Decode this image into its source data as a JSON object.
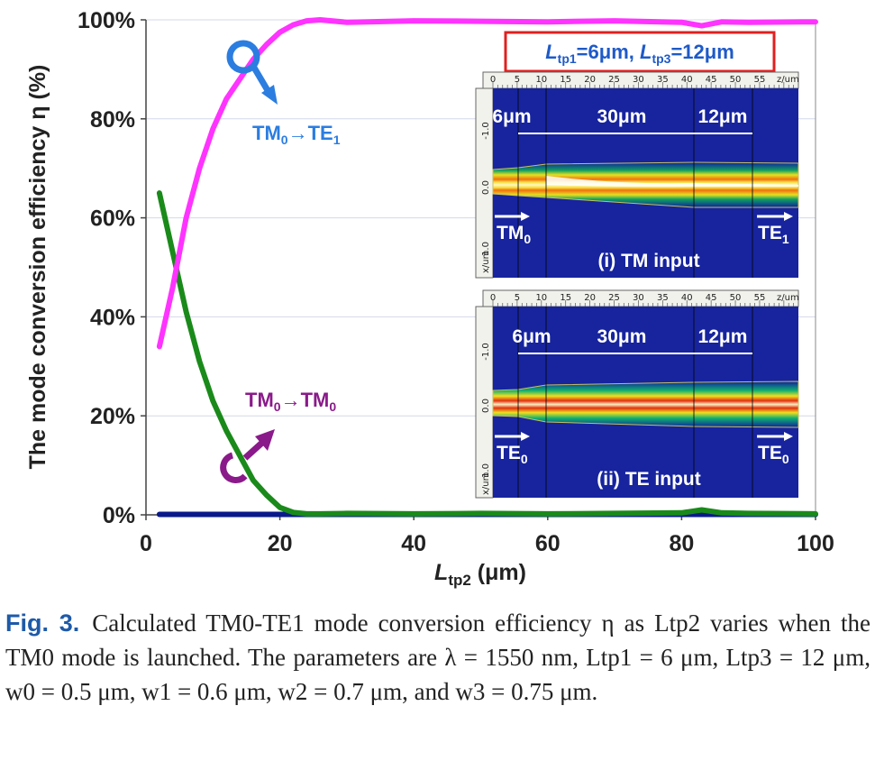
{
  "chart_data": {
    "type": "line",
    "ylabel": "The mode conversion efficiency η (%)",
    "xlabel": {
      "main": "L",
      "sub": "tp2",
      "unit": " (μm)"
    },
    "xlim": [
      0,
      100
    ],
    "ylim": [
      0,
      100
    ],
    "x_ticks": [
      "0",
      "20",
      "40",
      "60",
      "80",
      "100"
    ],
    "y_ticks": [
      "0%",
      "20%",
      "40%",
      "60%",
      "80%",
      "100%"
    ],
    "grid": "horizontal",
    "series": [
      {
        "name": "TM0→TE1",
        "color": "#ff33ff",
        "x": [
          2,
          4,
          6,
          8,
          10,
          12,
          14,
          16,
          18,
          20,
          22,
          24,
          26,
          30,
          40,
          50,
          60,
          70,
          80,
          83,
          86,
          90,
          100
        ],
        "y": [
          34,
          46,
          60,
          70,
          78,
          84,
          88,
          92,
          95,
          97.5,
          99,
          99.8,
          100,
          99.5,
          99.8,
          99.7,
          99.6,
          99.8,
          99.5,
          98.8,
          99.6,
          99.5,
          99.6
        ]
      },
      {
        "name": "TM0→TM0",
        "color": "#1a8a1a",
        "x": [
          2,
          4,
          6,
          8,
          10,
          12,
          14,
          16,
          18,
          20,
          22,
          24,
          26,
          30,
          40,
          50,
          60,
          70,
          80,
          83,
          86,
          90,
          100
        ],
        "y": [
          65,
          53,
          41,
          31,
          23,
          17,
          12,
          7,
          4,
          1.5,
          0.5,
          0.2,
          0.2,
          0.3,
          0.2,
          0.3,
          0.2,
          0.3,
          0.4,
          1.0,
          0.4,
          0.3,
          0.2
        ]
      },
      {
        "name": "",
        "color": "#0a1a8a",
        "x": [
          2,
          100
        ],
        "y": [
          0.1,
          0.1
        ]
      }
    ],
    "annotations": {
      "te1": {
        "main": "TM",
        "sub0": "0",
        "arrow": "→",
        "mid": "TE",
        "sub1": "1",
        "color": "#2b7de0"
      },
      "tm0": {
        "main": "TM",
        "sub0": "0",
        "arrow": "→",
        "mid": "TM",
        "sub1": "0",
        "color": "#8a1a8a"
      },
      "params": {
        "a": "L",
        "a_sub": "tp1",
        "a_val": "=6μm, ",
        "b": "L",
        "b_sub": "tp3",
        "b_val": "=12μm",
        "border": "#e02020",
        "color": "#1e5ac8"
      }
    }
  },
  "insets": {
    "ruler": [
      "0",
      "5",
      "10",
      "15",
      "20",
      "25",
      "30",
      "35",
      "40",
      "45",
      "50",
      "55"
    ],
    "ruler_unit": "z/um",
    "x_unit": "x/um",
    "side_ticks": [
      "-1.0",
      "0.0",
      "1.0"
    ],
    "segments": [
      "6μm",
      "30μm",
      "12μm"
    ],
    "tm": {
      "title": "(i) TM input",
      "in_main": "TM",
      "in_sub": "0",
      "out_main": "TE",
      "out_sub": "1"
    },
    "te": {
      "title": "(ii) TE input",
      "in_main": "TE",
      "in_sub": "0",
      "out_main": "TE",
      "out_sub": "0"
    }
  },
  "caption": {
    "lead": "Fig. 3.",
    "text": "Calculated TM0-TE1 mode conversion efficiency η as Ltp2 varies when the TM0 mode is launched. The parameters are λ = 1550 nm, Ltp1 = 6 μm, Ltp3 = 12 μm, w0 = 0.5 μm, w1 = 0.6 μm, w2 = 0.7 μm, and w3 = 0.75 μm."
  }
}
